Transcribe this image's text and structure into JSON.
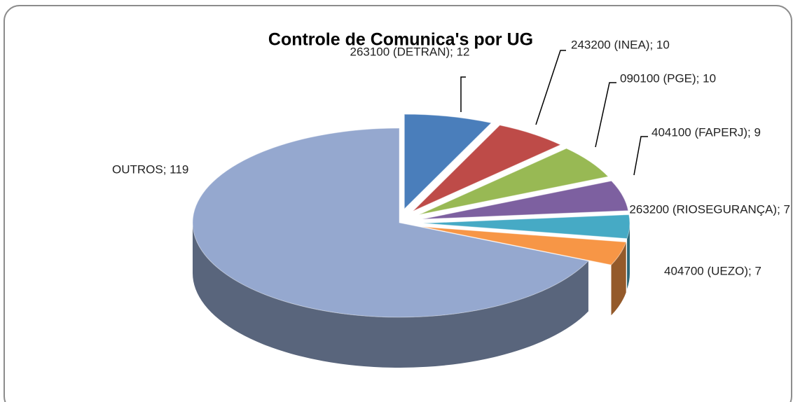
{
  "chart_data": {
    "type": "pie",
    "title": "Controle de Comunica's por UG",
    "categories": [
      "263100 (DETRAN)",
      "243200 (INEA)",
      "090100 (PGE)",
      "404100 (FAPERJ)",
      "263200 (RIOSEGURANÇA)",
      "404700 (UEZO)",
      "OUTROS"
    ],
    "values": [
      12,
      10,
      10,
      9,
      7,
      7,
      119
    ],
    "value_labels": [
      "263100 (DETRAN); 12",
      "243200 (INEA); 10",
      "090100 (PGE); 10",
      "404100 (FAPERJ); 9",
      "263200 (RIOSEGURANÇA); 7",
      "404700 (UEZO); 7",
      "OUTROS; 119"
    ],
    "colors": [
      "#4a7ebb",
      "#be4b48",
      "#98b954",
      "#7d60a0",
      "#46aac5",
      "#f79646",
      "#95a8cf"
    ]
  }
}
